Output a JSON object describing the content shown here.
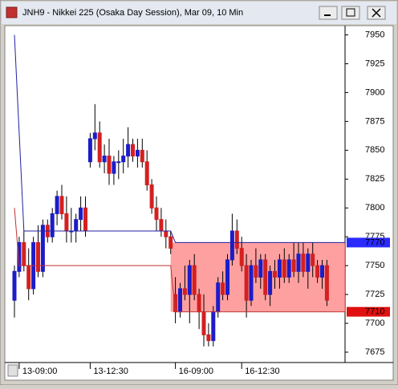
{
  "chart_data": {
    "type": "candlestick",
    "title": "JNH9 - Nikkei 225 (Osaka Day Session), Mar 09, 10 Min",
    "categories": [
      null,
      "13-09:00",
      null,
      null,
      null,
      null,
      null,
      null,
      null,
      null,
      null,
      null,
      null,
      null,
      null,
      null,
      "13-12:30",
      null,
      null,
      null,
      null,
      null,
      null,
      null,
      null,
      null,
      null,
      null,
      null,
      null,
      null,
      null,
      null,
      null,
      "16-09:00",
      null,
      null,
      null,
      null,
      null,
      null,
      null,
      null,
      null,
      null,
      null,
      null,
      null,
      "16-12:30",
      null,
      null,
      null,
      null,
      null,
      null,
      null,
      null,
      null,
      null,
      null,
      null,
      null,
      null,
      null,
      null,
      null,
      null
    ],
    "open": [
      7720,
      7745,
      7770,
      7750,
      7730,
      7770,
      7745,
      7785,
      7775,
      7795,
      7810,
      7795,
      7780,
      7780,
      7790,
      7800,
      7840,
      7860,
      7865,
      7840,
      7845,
      7830,
      7840,
      7840,
      7845,
      7855,
      7845,
      7850,
      7840,
      7820,
      7800,
      7790,
      7780,
      7775,
      7725,
      7710,
      7730,
      7725,
      7750,
      7725,
      7710,
      7690,
      7685,
      7710,
      7735,
      7725,
      7755,
      7780,
      7765,
      7750,
      7720,
      7750,
      7740,
      7755,
      7725,
      7745,
      7740,
      7755,
      7740,
      7755,
      7745,
      7760,
      7745,
      7760,
      7750,
      7740,
      7750
    ],
    "high": [
      7750,
      7775,
      7780,
      7765,
      7775,
      7785,
      7790,
      7790,
      7800,
      7815,
      7820,
      7810,
      7800,
      7795,
      7810,
      7810,
      7865,
      7890,
      7875,
      7855,
      7860,
      7845,
      7850,
      7860,
      7870,
      7860,
      7860,
      7860,
      7850,
      7825,
      7810,
      7800,
      7790,
      7780,
      7740,
      7735,
      7750,
      7755,
      7760,
      7730,
      7725,
      7700,
      7715,
      7740,
      7745,
      7760,
      7795,
      7790,
      7775,
      7760,
      7755,
      7765,
      7760,
      7760,
      7750,
      7755,
      7760,
      7765,
      7760,
      7770,
      7770,
      7770,
      7765,
      7770,
      7755,
      7755,
      7755
    ],
    "low": [
      7705,
      7740,
      7745,
      7720,
      7725,
      7740,
      7740,
      7770,
      7770,
      7785,
      7790,
      7770,
      7770,
      7770,
      7780,
      7775,
      7835,
      7850,
      7835,
      7830,
      7820,
      7820,
      7825,
      7830,
      7835,
      7840,
      7835,
      7835,
      7815,
      7795,
      7780,
      7775,
      7765,
      7760,
      7700,
      7705,
      7720,
      7700,
      7720,
      7695,
      7680,
      7680,
      7680,
      7705,
      7720,
      7720,
      7750,
      7760,
      7745,
      7705,
      7715,
      7735,
      7730,
      7720,
      7715,
      7730,
      7730,
      7735,
      7735,
      7740,
      7735,
      7740,
      7730,
      7740,
      7735,
      7730,
      7715
    ],
    "close": [
      7745,
      7770,
      7750,
      7730,
      7770,
      7745,
      7785,
      7775,
      7795,
      7810,
      7795,
      7780,
      7780,
      7790,
      7800,
      7780,
      7860,
      7865,
      7840,
      7845,
      7830,
      7840,
      7840,
      7845,
      7855,
      7845,
      7850,
      7840,
      7820,
      7800,
      7790,
      7780,
      7775,
      7765,
      7710,
      7730,
      7725,
      7750,
      7725,
      7710,
      7690,
      7685,
      7710,
      7735,
      7725,
      7755,
      7780,
      7765,
      7750,
      7720,
      7750,
      7740,
      7755,
      7725,
      7745,
      7740,
      7755,
      7740,
      7755,
      7745,
      7760,
      7745,
      7760,
      7750,
      7740,
      7750,
      7720
    ],
    "up_color": "#1c1cc8",
    "down_color": "#d42020",
    "ylim": [
      7666,
      7958
    ],
    "yticks": [
      7675,
      7700,
      7725,
      7750,
      7775,
      7800,
      7825,
      7850,
      7875,
      7900,
      7925,
      7950
    ],
    "lines": [
      {
        "color": "#2020a0",
        "points": [
          [
            0,
            7950
          ],
          [
            2,
            7780
          ],
          [
            33,
            7780
          ],
          [
            34,
            7770
          ],
          [
            66,
            7770
          ]
        ]
      },
      {
        "color": "#c03030",
        "points": [
          [
            0,
            7800
          ],
          [
            1,
            7750
          ],
          [
            33,
            7750
          ],
          [
            34,
            7710
          ],
          [
            66,
            7710
          ]
        ]
      }
    ],
    "zone": {
      "start": 33,
      "range": [
        7710,
        7770
      ],
      "color": "#ff8080"
    },
    "price_tags": [
      {
        "value": 7770,
        "color": "#2a2aff"
      },
      {
        "value": 7710,
        "color": "#e01010"
      }
    ]
  }
}
